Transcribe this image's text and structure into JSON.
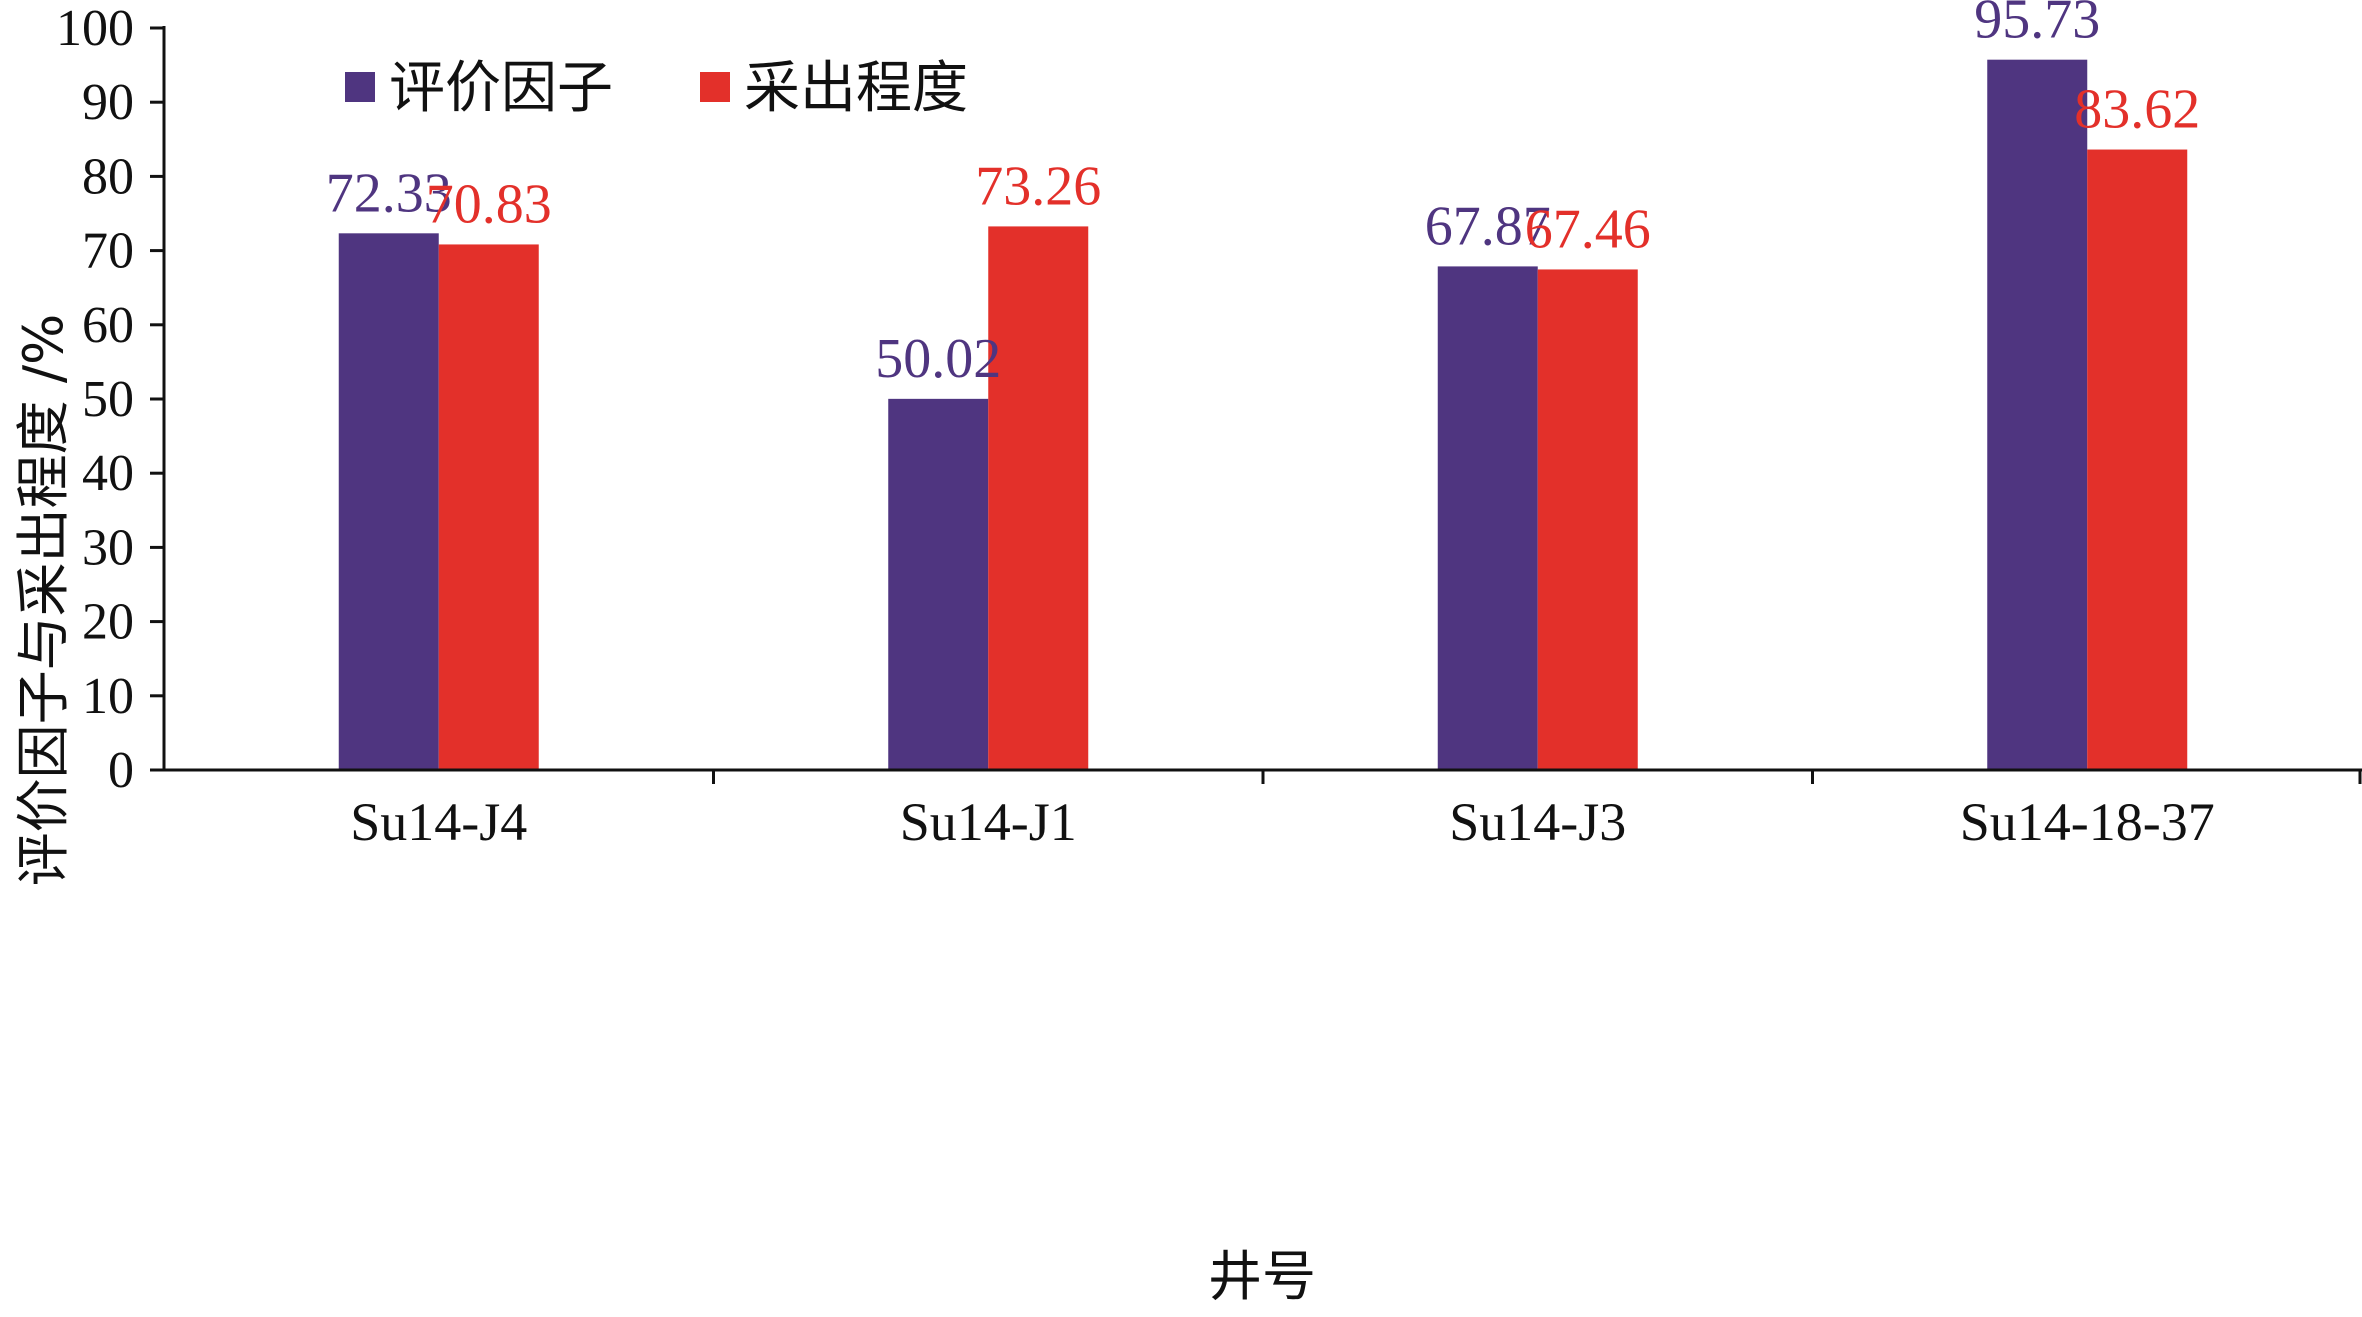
{
  "chart_data": {
    "type": "bar",
    "categories": [
      "Su14-J4",
      "Su14-J1",
      "Su14-J3",
      "Su14-18-37"
    ],
    "series": [
      {
        "name": "评价因子",
        "values": [
          72.33,
          50.02,
          67.87,
          95.73
        ],
        "color": "#4f3580"
      },
      {
        "name": "采出程度",
        "values": [
          70.83,
          73.26,
          67.46,
          83.62
        ],
        "color": "#e3302a"
      }
    ],
    "value_labels": [
      [
        "72.33",
        "50.02",
        "67.87",
        "95.73"
      ],
      [
        "70.83",
        "73.26",
        "67.46",
        "83.62"
      ]
    ],
    "xlabel": "井号",
    "ylabel": "评价因子与采出程度 /%",
    "ylim": [
      0,
      100
    ],
    "yticks": [
      "0",
      "10",
      "20",
      "30",
      "40",
      "50",
      "60",
      "70",
      "80",
      "90",
      "100"
    ],
    "grid": false,
    "legend_position": "top-left"
  }
}
